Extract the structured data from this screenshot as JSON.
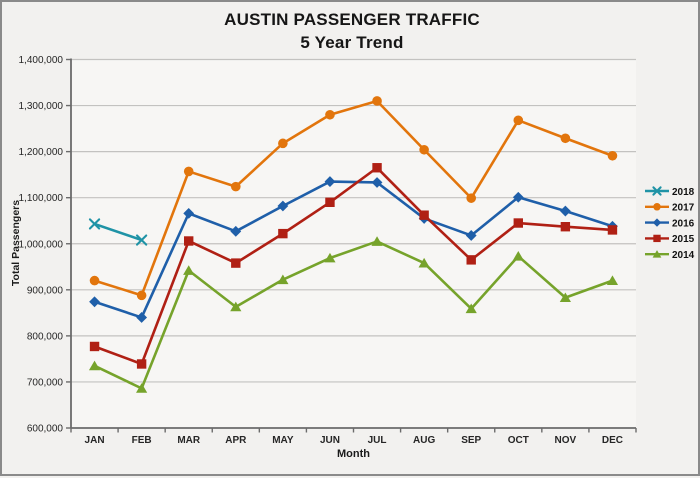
{
  "chart_data": {
    "type": "line",
    "title": "AUSTIN PASSENGER TRAFFIC",
    "subtitle": "5 Year Trend",
    "xlabel": "Month",
    "ylabel": "Total Passengers",
    "categories": [
      "JAN",
      "FEB",
      "MAR",
      "APR",
      "MAY",
      "JUN",
      "JUL",
      "AUG",
      "SEP",
      "OCT",
      "NOV",
      "DEC"
    ],
    "ylim": [
      600000,
      1400000
    ],
    "ytick_step": 100000,
    "ytick_labels": [
      "600,000",
      "700,000",
      "800,000",
      "900,000",
      "1,000,000",
      "1,100,000",
      "1,200,000",
      "1,300,000",
      "1,400,000"
    ],
    "grid": true,
    "legend_position": "right",
    "series": [
      {
        "name": "2018",
        "color": "#1F93A6",
        "marker": "x",
        "values": [
          1043000,
          1008000
        ]
      },
      {
        "name": "2017",
        "color": "#E2750C",
        "marker": "circle",
        "values": [
          920000,
          888000,
          1157000,
          1124000,
          1218000,
          1280000,
          1310000,
          1204000,
          1099000,
          1268000,
          1229000,
          1191000
        ]
      },
      {
        "name": "2016",
        "color": "#1F5FA9",
        "marker": "diamond",
        "values": [
          874000,
          840000,
          1066000,
          1027000,
          1082000,
          1135000,
          1133000,
          1055000,
          1018000,
          1101000,
          1071000,
          1038000
        ]
      },
      {
        "name": "2015",
        "color": "#B02014",
        "marker": "square",
        "values": [
          777000,
          739000,
          1006000,
          958000,
          1022000,
          1090000,
          1165000,
          1062000,
          965000,
          1045000,
          1037000,
          1030000
        ]
      },
      {
        "name": "2014",
        "color": "#76A32B",
        "marker": "triangle",
        "values": [
          735000,
          686000,
          942000,
          863000,
          922000,
          969000,
          1005000,
          958000,
          859000,
          973000,
          883000,
          920000
        ]
      }
    ]
  },
  "colors": {
    "background": "#F2F1EF",
    "plot_background": "#F7F6F4",
    "gridline": "#C3C2C0",
    "axis": "#6B6B6B",
    "border": "#8A8A8A",
    "text": "#262626"
  }
}
